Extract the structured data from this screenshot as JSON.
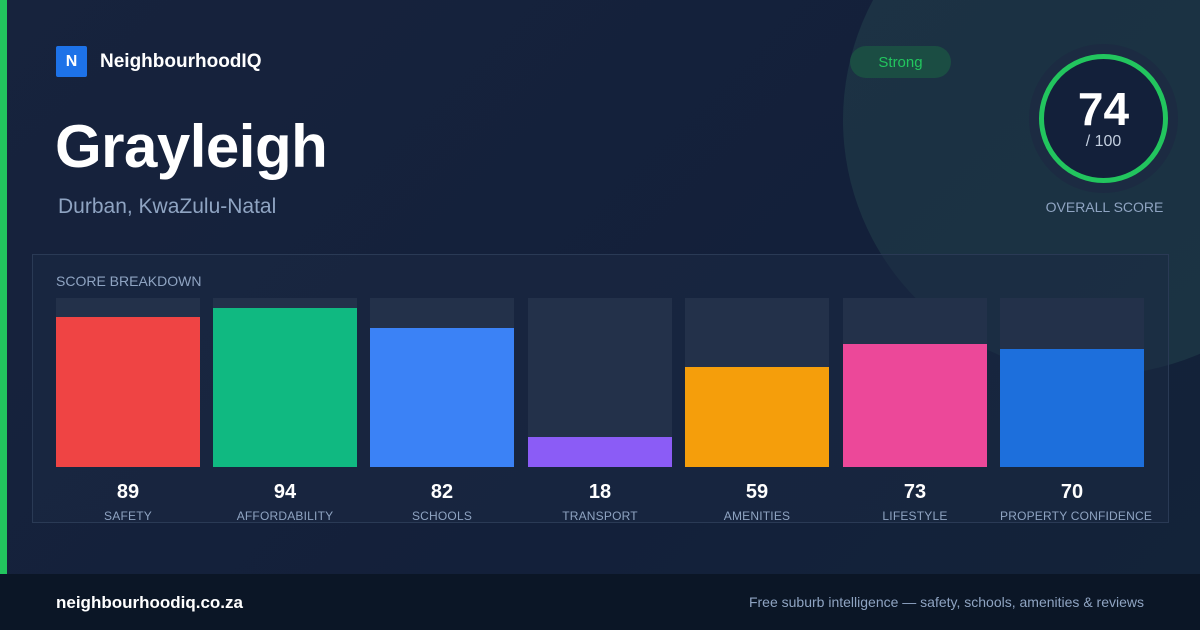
{
  "brand": {
    "logo_letter": "N",
    "name": "NeighbourhoodIQ"
  },
  "suburb": {
    "name": "Grayleigh",
    "location": "Durban, KwaZulu-Natal"
  },
  "badge": {
    "label": "Strong",
    "color": "#22c55e"
  },
  "overall": {
    "score": "74",
    "max_label": "/ 100",
    "caption": "OVERALL SCORE",
    "value": 74,
    "max": 100,
    "ring_color": "#22c55e"
  },
  "breakdown": {
    "title": "SCORE BREAKDOWN",
    "items": [
      {
        "label": "SAFETY",
        "value": 89,
        "value_text": "89",
        "color": "#ef4444"
      },
      {
        "label": "AFFORDABILITY",
        "value": 94,
        "value_text": "94",
        "color": "#10b981"
      },
      {
        "label": "SCHOOLS",
        "value": 82,
        "value_text": "82",
        "color": "#3b82f6"
      },
      {
        "label": "TRANSPORT",
        "value": 18,
        "value_text": "18",
        "color": "#8b5cf6"
      },
      {
        "label": "AMENITIES",
        "value": 59,
        "value_text": "59",
        "color": "#f59e0b"
      },
      {
        "label": "LIFESTYLE",
        "value": 73,
        "value_text": "73",
        "color": "#ec4899"
      },
      {
        "label": "PROPERTY CONFIDENCE",
        "value": 70,
        "value_text": "70",
        "color": "#1d6fdc"
      }
    ]
  },
  "footer": {
    "domain": "neighbourhoodiq.co.za",
    "tagline": "Free suburb intelligence — safety, schools, amenities & reviews"
  }
}
